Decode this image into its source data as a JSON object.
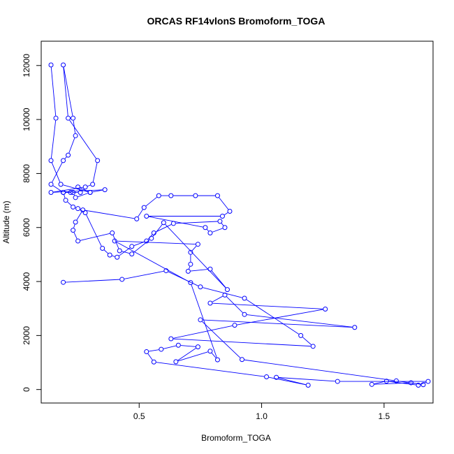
{
  "chart_data": {
    "type": "line",
    "title": "ORCAS RF14vlonS Bromoform_TOGA",
    "xlabel": "Bromoform_TOGA",
    "ylabel": "Altitude (m)",
    "xlim": [
      0.1,
      1.7
    ],
    "ylim": [
      -500,
      12900
    ],
    "xticks": [
      "0.5",
      "1.0",
      "1.5"
    ],
    "yticks": [
      "0",
      "2000",
      "4000",
      "6000",
      "8000",
      "10000",
      "12000"
    ],
    "grid": false,
    "legend": "none",
    "marker": "open-circle",
    "color": "#0000ff",
    "series": [
      {
        "x": [
          0.19,
          0.43,
          0.61,
          0.75,
          0.93,
          1.16,
          1.21,
          0.63,
          0.89,
          1.26,
          0.79,
          0.85,
          0.93,
          1.38,
          0.75,
          0.92,
          1.55,
          1.66,
          1.61,
          1.45,
          1.51,
          1.64,
          1.68,
          1.31,
          1.06,
          1.19,
          1.02,
          0.56,
          0.53,
          0.59,
          0.66,
          0.74,
          0.65,
          0.79,
          0.82,
          0.71,
          0.4,
          0.74,
          0.71,
          0.71,
          0.7,
          0.79,
          0.86,
          0.6,
          0.55,
          0.47,
          0.42,
          0.39,
          0.25,
          0.23,
          0.24,
          0.27,
          0.49,
          0.52,
          0.58,
          0.63,
          0.73,
          0.82,
          0.87,
          0.84,
          0.53,
          0.77,
          0.79,
          0.85,
          0.83,
          0.64,
          0.56,
          0.53,
          0.47,
          0.41,
          0.38,
          0.35,
          0.28,
          0.25,
          0.23,
          0.2,
          0.19,
          0.22,
          0.26,
          0.25,
          0.3,
          0.24,
          0.23,
          0.19,
          0.14,
          0.19,
          0.21,
          0.24,
          0.23,
          0.19,
          0.21,
          0.33,
          0.31,
          0.28,
          0.14,
          0.36,
          0.3,
          0.18,
          0.14,
          0.16,
          0.14
        ],
        "y": [
          3970,
          4080,
          4400,
          3800,
          3380,
          2000,
          1600,
          1880,
          2380,
          2980,
          3200,
          3500,
          2780,
          2300,
          2580,
          1110,
          320,
          180,
          250,
          190,
          310,
          160,
          300,
          300,
          450,
          160,
          470,
          1020,
          1400,
          1490,
          1640,
          1580,
          1030,
          1420,
          1100,
          3960,
          5500,
          5380,
          5080,
          4640,
          4380,
          4460,
          3700,
          6180,
          5600,
          5020,
          5140,
          5800,
          5500,
          5900,
          6200,
          6650,
          6320,
          6740,
          7180,
          7180,
          7180,
          7180,
          6600,
          6420,
          6420,
          6000,
          5800,
          6000,
          6230,
          6150,
          5800,
          5500,
          5300,
          4900,
          4980,
          5230,
          6550,
          6700,
          6760,
          7010,
          7300,
          7300,
          7300,
          7500,
          7300,
          7110,
          7300,
          7300,
          7600,
          8480,
          8680,
          9400,
          10050,
          12020,
          10050,
          8480,
          7600,
          7500,
          7300,
          7400,
          7300,
          7600,
          8480,
          10050,
          12020
        ]
      }
    ]
  }
}
